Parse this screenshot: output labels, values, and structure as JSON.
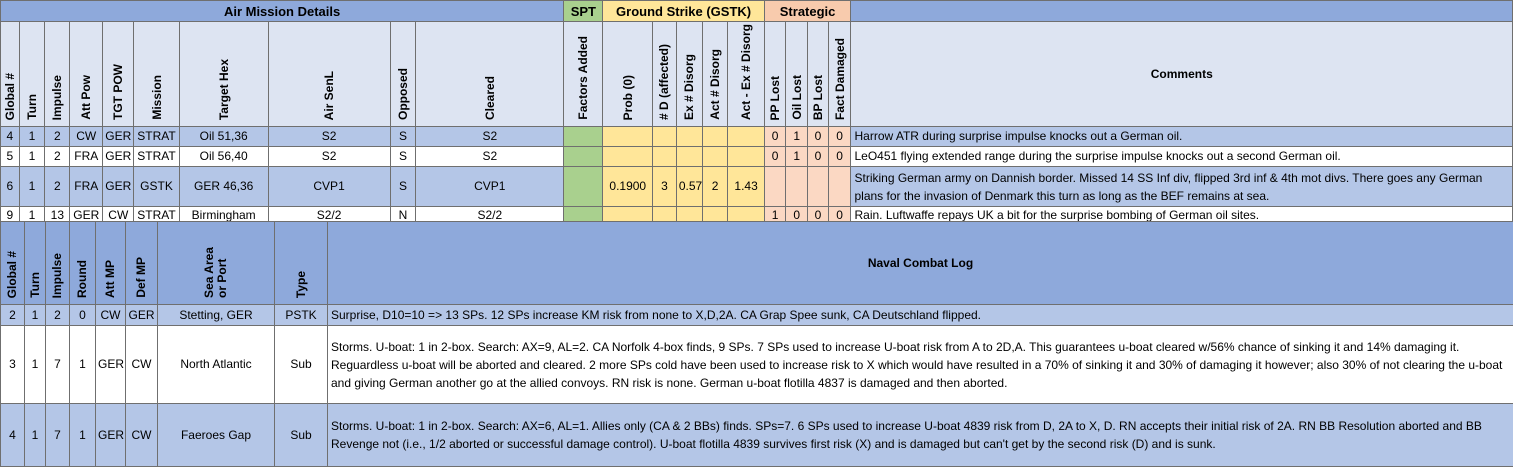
{
  "air": {
    "group_headers": {
      "details": "Air Mission Details",
      "spt": "SPT",
      "gstk": "Ground Strike (GSTK)",
      "strategic": "Strategic"
    },
    "columns": {
      "global": "Global #",
      "turn": "Turn",
      "impulse": "Impulse",
      "att_pow": "Att Pow",
      "tgt_pow": "TGT POW",
      "mission": "Mission",
      "target_hex": "Target Hex",
      "air_senl": "Air SenL",
      "opposed": "Opposed",
      "cleared": "Cleared",
      "factors_added": "Factors Added",
      "prob": "Prob (0)",
      "d_affected": "# D (affected)",
      "ex_disorg": "Ex # Disorg",
      "act_disorg": "Act # Disorg",
      "act_ex_disorg": "Act - Ex # Disorg",
      "pp_lost": "PP Lost",
      "oil_lost": "Oil Lost",
      "bp_lost": "BP Lost",
      "fact_damaged": "Fact Damaged",
      "comments": "Comments"
    },
    "rows": [
      {
        "global": "4",
        "turn": "1",
        "impulse": "2",
        "att_pow": "CW",
        "tgt_pow": "GER",
        "mission": "STRAT",
        "target_hex": "Oil 51,36",
        "air_senl": "S2",
        "opposed": "S",
        "cleared": "S2",
        "prob": "",
        "d_affected": "",
        "ex_disorg": "",
        "act_disorg": "",
        "act_ex_disorg": "",
        "pp_lost": "0",
        "oil_lost": "1",
        "bp_lost": "0",
        "fact_damaged": "0",
        "comment": "Harrow ATR during surprise impulse knocks out a German oil."
      },
      {
        "global": "5",
        "turn": "1",
        "impulse": "2",
        "att_pow": "FRA",
        "tgt_pow": "GER",
        "mission": "STRAT",
        "target_hex": "Oil 56,40",
        "air_senl": "S2",
        "opposed": "S",
        "cleared": "S2",
        "prob": "",
        "d_affected": "",
        "ex_disorg": "",
        "act_disorg": "",
        "act_ex_disorg": "",
        "pp_lost": "0",
        "oil_lost": "1",
        "bp_lost": "0",
        "fact_damaged": "0",
        "comment": "LeO451 flying extended range during the surprise impulse knocks out a second German oil."
      },
      {
        "global": "6",
        "turn": "1",
        "impulse": "2",
        "att_pow": "FRA",
        "tgt_pow": "GER",
        "mission": "GSTK",
        "target_hex": "GER 46,36",
        "air_senl": "CVP1",
        "opposed": "S",
        "cleared": "CVP1",
        "prob": "0.1900",
        "d_affected": "3",
        "ex_disorg": "0.57",
        "act_disorg": "2",
        "act_ex_disorg": "1.43",
        "pp_lost": "",
        "oil_lost": "",
        "bp_lost": "",
        "fact_damaged": "",
        "comment": "Striking German army on Dannish border.  Missed 14 SS Inf div, flipped 3rd inf & 4th mot divs.  There goes any German plans for the invasion of Denmark this turn as long as the BEF remains at sea."
      },
      {
        "global": "9",
        "turn": "1",
        "impulse": "13",
        "att_pow": "GER",
        "tgt_pow": "CW",
        "mission": "STRAT",
        "target_hex": "Birmingham",
        "air_senl": "S2/2",
        "opposed": "N",
        "cleared": "S2/2",
        "prob": "",
        "d_affected": "",
        "ex_disorg": "",
        "act_disorg": "",
        "act_ex_disorg": "",
        "pp_lost": "1",
        "oil_lost": "0",
        "bp_lost": "0",
        "fact_damaged": "0",
        "comment": "Rain.  Luftwaffe repays UK a bit for the surprise bombing of German oil sites."
      }
    ]
  },
  "naval": {
    "title": "Naval Combat Log",
    "columns": {
      "global": "Global #",
      "turn": "Turn",
      "impulse": "Impulse",
      "round": "Round",
      "att_mp": "Att MP",
      "def_mp": "Def MP",
      "sea_area": "Sea Area\nor Port",
      "type": "Type"
    },
    "rows": [
      {
        "global": "2",
        "turn": "1",
        "impulse": "2",
        "round": "0",
        "att_mp": "CW",
        "def_mp": "GER",
        "sea_area": "Stetting, GER",
        "type": "PSTK",
        "comment": "Surprise, D10=10 => 13 SPs.  12 SPs increase KM risk from none to X,D,2A.  CA Grap Spee sunk, CA Deutschland flipped."
      },
      {
        "global": "3",
        "turn": "1",
        "impulse": "7",
        "round": "1",
        "att_mp": "GER",
        "def_mp": "CW",
        "sea_area": "North Atlantic",
        "type": "Sub",
        "comment": "Storms.  U-boat: 1 in 2-box.  Search:  AX=9, AL=2.  CA Norfolk 4-box finds, 9 SPs.  7 SPs used to increase U-boat risk from A to 2D,A.  This guarantees u-boat cleared w/56% chance of sinking it and 14% damaging it.  Reguardless u-boat will be aborted and cleared.  2 more SPs cold have been used to increase risk to X which would have resulted in a 70% of sinking it and 30% of damaging it however; also 30% of not clearing the u-boat and giving German another go at the allied convoys.  RN risk is none.  German u-boat flotilla 4837 is damaged and then aborted."
      },
      {
        "global": "4",
        "turn": "1",
        "impulse": "7",
        "round": "1",
        "att_mp": "GER",
        "def_mp": "CW",
        "sea_area": "Faeroes Gap",
        "type": "Sub",
        "comment": "Storms.  U-boat: 1 in 2-box.  Search: AX=6, AL=1.  Allies only (CA & 2 BBs) finds.  SPs=7.  6 SPs used to increase U-boat 4839 risk from D, 2A to X, D.  RN accepts their initial risk of 2A.  RN BB Resolution aborted and BB Revenge not (i.e., 1/2 aborted or successful damage control).  U-boat flotilla 4839 survives first risk (X) and is damaged but can't get by the second risk (D) and is sunk."
      }
    ]
  }
}
